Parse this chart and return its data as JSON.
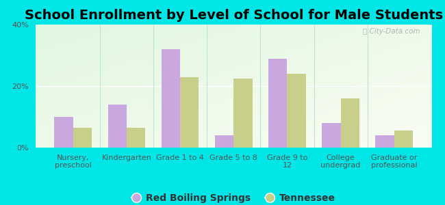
{
  "title": "School Enrollment by Level of School for Male Students",
  "categories": [
    "Nursery,\npreschool",
    "Kindergarten",
    "Grade 1 to 4",
    "Grade 5 to 8",
    "Grade 9 to\n12",
    "College\nundergrad",
    "Graduate or\nprofessional"
  ],
  "red_boiling_springs": [
    10,
    14,
    32,
    4,
    29,
    8,
    4
  ],
  "tennessee": [
    6.5,
    6.5,
    23,
    22.5,
    24,
    16,
    5.5
  ],
  "bar_color_rbs": "#c9a8e0",
  "bar_color_tn": "#c8cf8a",
  "legend_rbs": "Red Boiling Springs",
  "legend_tn": "Tennessee",
  "ylim": [
    0,
    40
  ],
  "yticks": [
    0,
    20,
    40
  ],
  "ytick_labels": [
    "0%",
    "20%",
    "40%"
  ],
  "background_color": "#00e5e5",
  "title_fontsize": 14,
  "tick_fontsize": 8,
  "legend_fontsize": 10,
  "bar_width": 0.35
}
